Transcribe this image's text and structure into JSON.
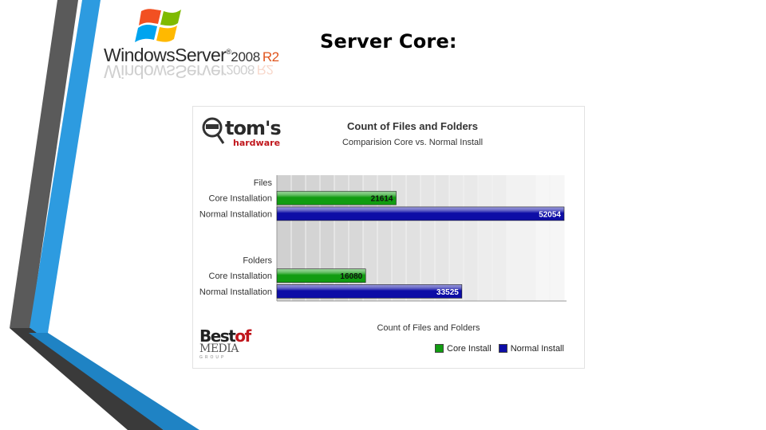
{
  "slide": {
    "title": "Server Core:"
  },
  "logo": {
    "brand_word": "WindowsServer",
    "version": "2008",
    "release": "R2",
    "trademark": "®",
    "flag_colors": [
      "#f25022",
      "#7fba00",
      "#00a4ef",
      "#ffb900"
    ]
  },
  "decoration": {
    "stripe_colors": [
      "#5a5a5a",
      "#2d9be0",
      "#1f83c4",
      "#3a3a3a"
    ]
  },
  "publisher": {
    "line1": "tom's",
    "line2": "hardware"
  },
  "footer_logo": {
    "line1": "Best",
    "line1_accent": "of",
    "line2": "MEDIA",
    "line3": "GROUP"
  },
  "chart_data": {
    "type": "bar",
    "orientation": "horizontal",
    "title": "Count of Files and Folders",
    "subtitle": "Comparision Core vs. Normal Install",
    "xlabel": "Count of Files and Folders",
    "xlim": [
      0,
      52054
    ],
    "grid": true,
    "legend_position": "bottom-right",
    "groups": [
      {
        "label": "Files",
        "bars": [
          {
            "label": "Core Installation",
            "series": "Core Install",
            "value": 21614
          },
          {
            "label": "Normal Installation",
            "series": "Normal Install",
            "value": 52054
          }
        ]
      },
      {
        "label": "Folders",
        "bars": [
          {
            "label": "Core Installation",
            "series": "Core Install",
            "value": 16080
          },
          {
            "label": "Normal Installation",
            "series": "Normal Install",
            "value": 33525
          }
        ]
      }
    ],
    "series": [
      {
        "name": "Core Install",
        "color": "#119c11"
      },
      {
        "name": "Normal Install",
        "color": "#0d0da6"
      }
    ]
  }
}
